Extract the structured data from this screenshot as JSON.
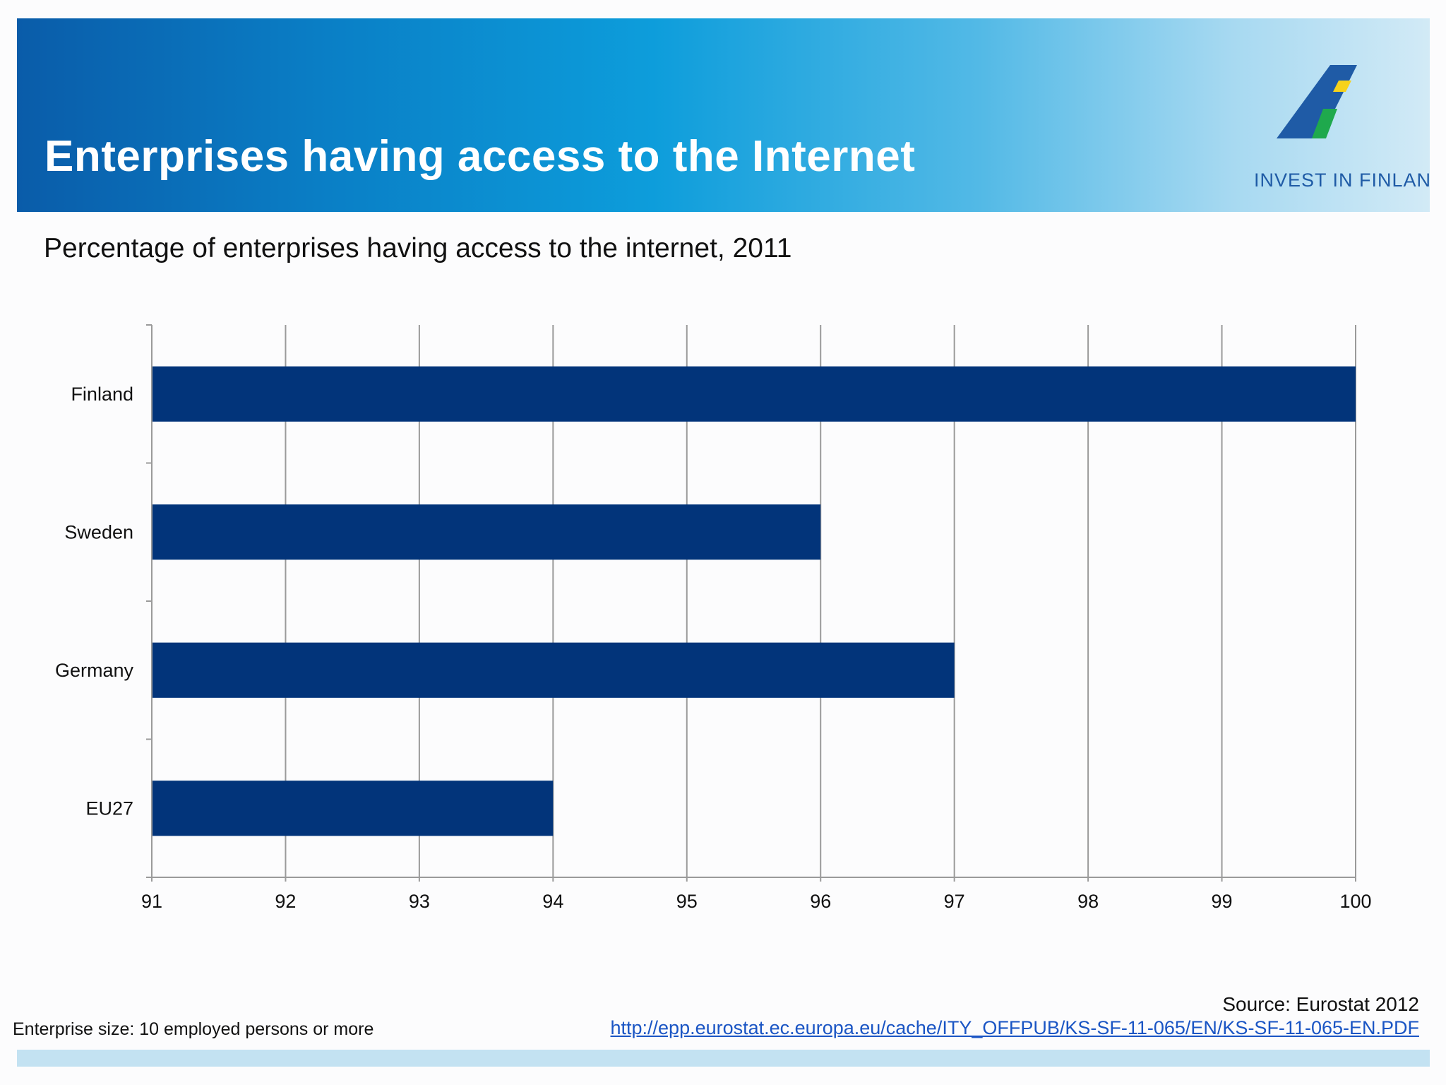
{
  "header": {
    "title": "Enterprises having access to the Internet",
    "logo_text": "INVEST IN FINLAND",
    "colors": {
      "banner_start": "#0a5ca9",
      "banner_end": "#d2eaf6",
      "logo_blue": "#1f5ba6",
      "logo_yellow": "#f6d21a",
      "logo_green": "#1fa94d"
    }
  },
  "subtitle": "Percentage of enterprises having access to the internet, 2011",
  "chart_data": {
    "type": "bar",
    "orientation": "horizontal",
    "categories": [
      "Finland",
      "Sweden",
      "Germany",
      "EU27"
    ],
    "values": [
      100,
      96,
      97,
      94
    ],
    "xlim": [
      91,
      100
    ],
    "xticks": [
      "91",
      "92",
      "93",
      "94",
      "95",
      "96",
      "97",
      "98",
      "99",
      "100"
    ],
    "grid": "vertical",
    "bar_color": "#02347a",
    "title": "",
    "xlabel": "",
    "ylabel": ""
  },
  "footer": {
    "note": "Enterprise size: 10 employed persons or more",
    "source": "Source: Eurostat 2012",
    "link": "http://epp.eurostat.ec.europa.eu/cache/ITY_OFFPUB/KS-SF-11-065/EN/KS-SF-11-065-EN.PDF"
  }
}
